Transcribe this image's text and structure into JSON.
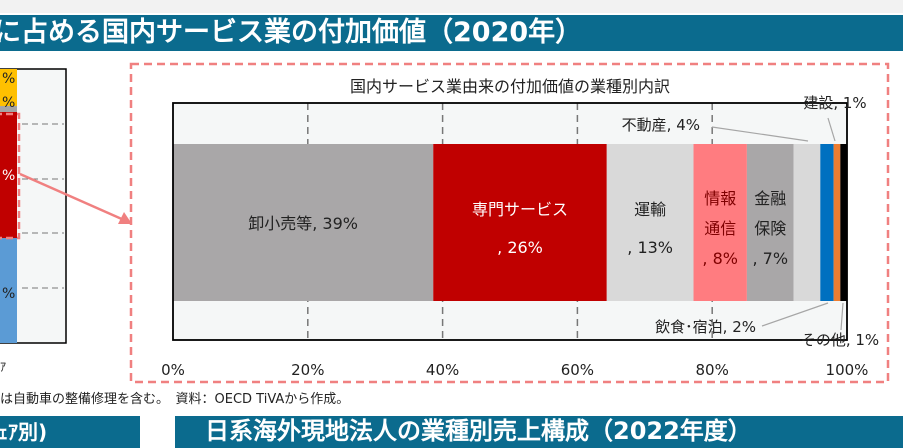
{
  "header": {
    "title": "に占める国内サービス業の付加価値（2020年）"
  },
  "footnote": "は自動車の整備修理を含む。　資料：OECD TiVAから作成。",
  "left_panel_fragment": {
    "axis_fragment": "ｱ",
    "percent_fragments": [
      "%",
      "%",
      "%",
      "%"
    ]
  },
  "bottom_bands": {
    "left": "ｪｱ別)",
    "right": "日系海外現地法人の業種別売上構成（2022年度）"
  },
  "colors": {
    "band": "#0b6b8e",
    "highlight_box": "#f08080"
  },
  "chart_data": {
    "type": "bar",
    "orientation": "horizontal-stacked-100",
    "title": "国内サービス業由来の付加価値の業種別内訳",
    "xlim": [
      0,
      100
    ],
    "xticks": [
      "0%",
      "20%",
      "40%",
      "60%",
      "80%",
      "100%"
    ],
    "grid": "vertical dashed",
    "series": [
      {
        "name": "卸小売等",
        "value": 39,
        "label": "卸小売等, 39%",
        "color": "#a9a7a8",
        "text_color": "#222"
      },
      {
        "name": "専門サービス",
        "value": 26,
        "label_lines": [
          "専門サービス",
          ", 26%"
        ],
        "color": "#c00000",
        "text_color": "#ffffff"
      },
      {
        "name": "運輸",
        "value": 13,
        "label_lines": [
          "運輸",
          ", 13%"
        ],
        "color": "#d9d9d9",
        "text_color": "#222"
      },
      {
        "name": "情報通信",
        "value": 8,
        "label_lines": [
          "情報",
          "通信",
          ", 8%"
        ],
        "color": "#ff7c80",
        "text_color": "#7f0000"
      },
      {
        "name": "金融保険",
        "value": 7,
        "label_lines": [
          "金融",
          "保険",
          ", 7%"
        ],
        "color": "#a9a7a8",
        "text_color": "#222"
      },
      {
        "name": "不動産",
        "value": 4,
        "label": "不動産, 4%",
        "color": "#d9d9d9",
        "text_color": "#222"
      },
      {
        "name": "飲食・宿泊",
        "value": 2,
        "label": "飲食･宿泊, 2%",
        "color": "#0070c0",
        "text_color": "#222"
      },
      {
        "name": "建設",
        "value": 1,
        "label": "建設, 1%",
        "color": "#ed7d31",
        "text_color": "#222"
      },
      {
        "name": "その他",
        "value": 1,
        "label": "その他, 1%",
        "color": "#000000",
        "text_color": "#222"
      }
    ]
  }
}
